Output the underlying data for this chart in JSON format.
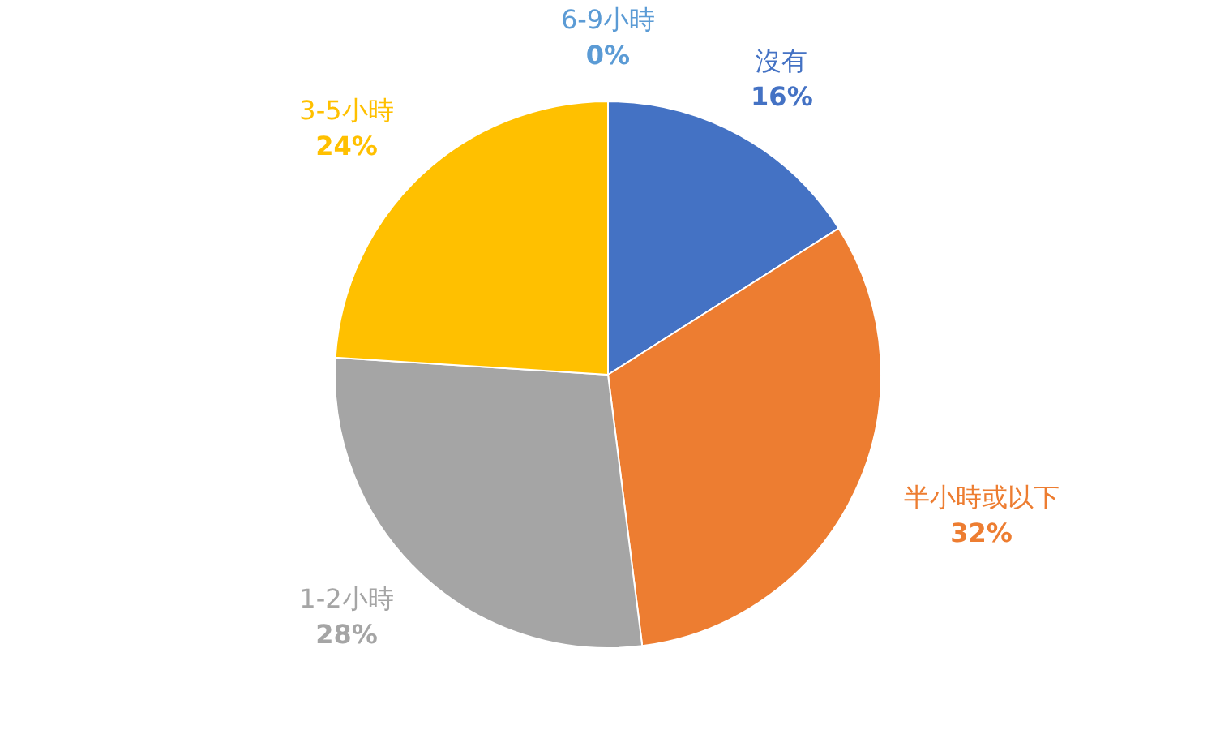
{
  "chart_data": {
    "type": "pie",
    "categories": [
      "沒有",
      "半小時或以下",
      "1-2小時",
      "3-5小時",
      "6-9小時"
    ],
    "values": [
      16,
      32,
      28,
      24,
      0
    ],
    "colors": [
      "#4472c4",
      "#ed7d31",
      "#a5a5a5",
      "#ffc000",
      "#5b9bd5"
    ],
    "value_labels": [
      "16%",
      "32%",
      "28%",
      "24%",
      "0%"
    ],
    "legend": false
  }
}
